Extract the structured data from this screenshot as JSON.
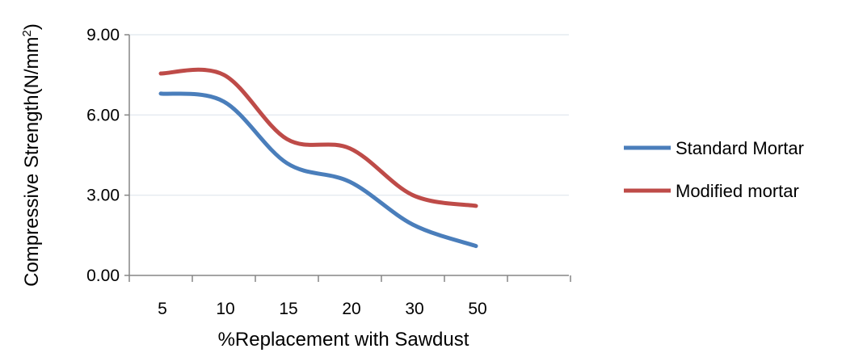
{
  "chart_data": {
    "type": "line",
    "title": "",
    "xlabel": "%Replacement with Sawdust",
    "ylabel_main": "Compressive Strength(N/mm",
    "ylabel_sup": "2",
    "ylabel_close": ")",
    "categories": [
      "5",
      "10",
      "15",
      "20",
      "30",
      "50"
    ],
    "ylim": [
      0,
      9
    ],
    "yticks": [
      "0.00",
      "3.00",
      "6.00",
      "9.00"
    ],
    "grid": true,
    "smooth": true,
    "legend_position": "right",
    "series": [
      {
        "name": "Standard Mortar",
        "values": [
          6.8,
          6.5,
          4.2,
          3.5,
          1.9,
          1.1
        ],
        "color": "#4a7ebb"
      },
      {
        "name": "Modified mortar",
        "values": [
          7.55,
          7.5,
          5.1,
          4.75,
          3.0,
          2.6
        ],
        "color": "#be4b48"
      }
    ]
  }
}
